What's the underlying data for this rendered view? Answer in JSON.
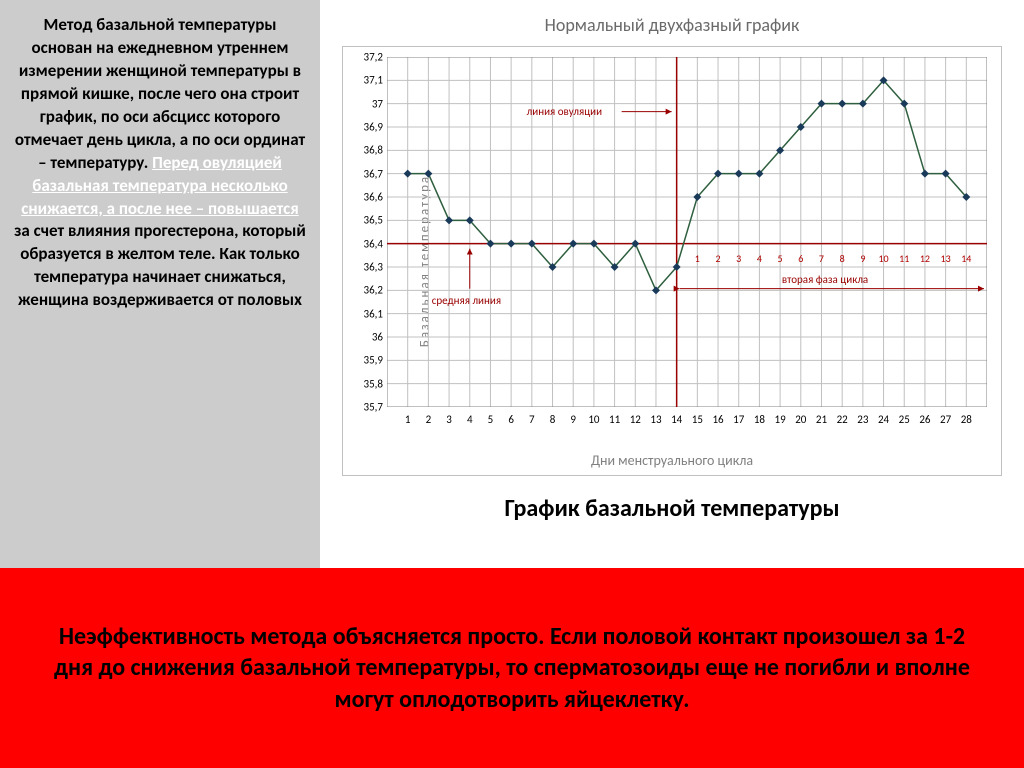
{
  "left_text": {
    "p1": "Метод базальной температуры основан на ежедневном утреннем измерении женщиной температуры в прямой кишке, после чего она строит график, по оси абсцисс которого отмечает день цикла, а по оси ординат – температуру.",
    "highlight": "Перед овуляцией базальная температура несколько снижается, а после нее – повышается",
    "p2": " за счет влияния прогестерона, который образуется в желтом теле. Как только температура начинает снижаться, женщина воздерживается от половых"
  },
  "chart": {
    "title": "Нормальный двухфазный график",
    "caption": "График базальной температуры",
    "x_label": "Дни менструального цикла",
    "y_label": "Базальная  температура",
    "type": "line",
    "x_values": [
      1,
      2,
      3,
      4,
      5,
      6,
      7,
      8,
      9,
      10,
      11,
      12,
      13,
      14,
      15,
      16,
      17,
      18,
      19,
      20,
      21,
      22,
      23,
      24,
      25,
      26,
      27,
      28
    ],
    "y_values": [
      36.7,
      36.7,
      36.5,
      36.5,
      36.4,
      36.4,
      36.4,
      36.3,
      36.4,
      36.4,
      36.3,
      36.4,
      36.2,
      36.3,
      36.6,
      36.7,
      36.7,
      36.7,
      36.8,
      36.9,
      37.0,
      37.0,
      37.0,
      37.1,
      37.0,
      36.7,
      36.7,
      36.6
    ],
    "y_ticks": [
      35.7,
      35.8,
      35.9,
      36.0,
      36.1,
      36.2,
      36.3,
      36.4,
      36.5,
      36.6,
      36.7,
      36.8,
      36.9,
      37.0,
      37.1,
      37.2
    ],
    "y_tick_labels": [
      "35,7",
      "35,8",
      "35,9",
      "36",
      "36,1",
      "36,2",
      "36,3",
      "36,4",
      "36,5",
      "36,6",
      "36,7",
      "36,8",
      "36,9",
      "37",
      "37,1",
      "37,2"
    ],
    "x_ticks": [
      1,
      2,
      3,
      4,
      5,
      6,
      7,
      8,
      9,
      10,
      11,
      12,
      13,
      14,
      15,
      16,
      17,
      18,
      19,
      20,
      21,
      22,
      23,
      24,
      25,
      26,
      27,
      28
    ],
    "ylim": [
      35.7,
      37.2
    ],
    "xlim": [
      0,
      29
    ],
    "grid_color": "#c0c0c0",
    "line_color": "#2e5f3e",
    "marker_color": "#1a3a5a",
    "marker_size": 4,
    "line_width": 1.5,
    "ovulation_x": 14,
    "mean_line_y": 36.4,
    "annotation_color": "#990000",
    "annotations": {
      "ovulation": "линия овуляции",
      "mean": "средняя линия",
      "phase2": "вторая фаза цикла"
    },
    "phase2_numbers": [
      1,
      2,
      3,
      4,
      5,
      6,
      7,
      8,
      9,
      10,
      11,
      12,
      13,
      14
    ]
  },
  "bottom": {
    "text": "Неэффективность метода объясняется просто. Если половой контакт произошел за 1-2 дня до снижения базальной температуры, то сперматозоиды еще не погибли и вполне могут оплодотворить яйцеклетку."
  },
  "colors": {
    "left_bg": "#cccccc",
    "bottom_bg": "#ff0000",
    "highlight_text": "#ffffff"
  }
}
